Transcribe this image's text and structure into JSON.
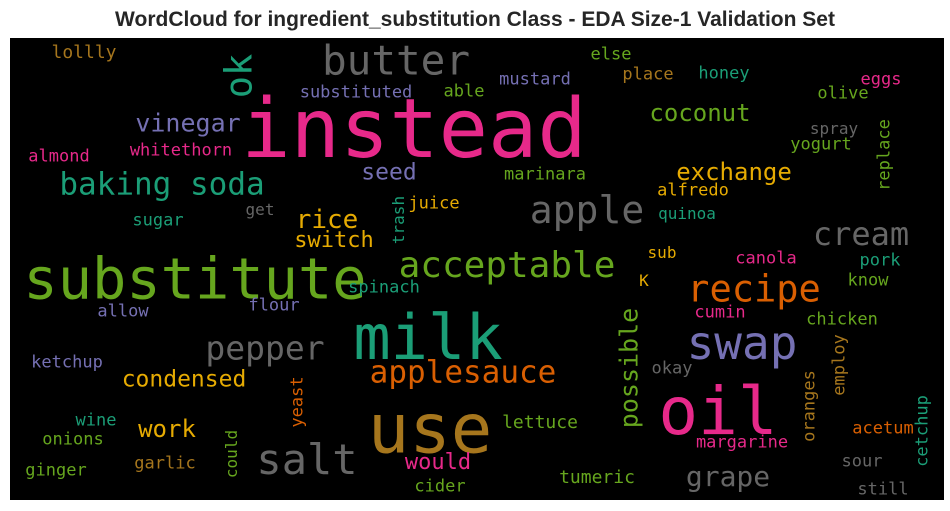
{
  "chart_data": {
    "type": "wordcloud",
    "title": "WordCloud for ingredient_substitution Class - EDA Size-1 Validation Set",
    "background": "#000000",
    "words": [
      {
        "text": "instead",
        "color": "#e7298a"
      },
      {
        "text": "substitute",
        "color": "#66a61e"
      },
      {
        "text": "use",
        "color": "#a6761d"
      },
      {
        "text": "milk",
        "color": "#1b9e77"
      },
      {
        "text": "oil",
        "color": "#e7298a"
      },
      {
        "text": "swap",
        "color": "#7570b3"
      },
      {
        "text": "butter",
        "color": "#666666"
      },
      {
        "text": "salt",
        "color": "#666666"
      },
      {
        "text": "apple",
        "color": "#666666"
      },
      {
        "text": "acceptable",
        "color": "#66a61e"
      },
      {
        "text": "baking soda",
        "color": "#1b9e77"
      },
      {
        "text": "recipe",
        "color": "#d95f02"
      },
      {
        "text": "ok",
        "color": "#1b9e77"
      },
      {
        "text": "cream",
        "color": "#666666"
      },
      {
        "text": "applesauce",
        "color": "#d95f02"
      },
      {
        "text": "pepper",
        "color": "#666666"
      },
      {
        "text": "vinegar",
        "color": "#7570b3"
      },
      {
        "text": "coconut",
        "color": "#66a61e"
      },
      {
        "text": "exchange",
        "color": "#e6ab02"
      },
      {
        "text": "possible",
        "color": "#66a61e"
      },
      {
        "text": "grape",
        "color": "#666666"
      },
      {
        "text": "condensed",
        "color": "#e6ab02"
      },
      {
        "text": "rice",
        "color": "#e6ab02"
      },
      {
        "text": "switch",
        "color": "#e6ab02"
      },
      {
        "text": "seed",
        "color": "#7570b3"
      },
      {
        "text": "work",
        "color": "#e6ab02"
      },
      {
        "text": "would",
        "color": "#e7298a"
      },
      {
        "text": "lollly",
        "color": "#a6761d"
      },
      {
        "text": "else",
        "color": "#66a61e"
      },
      {
        "text": "eggs",
        "color": "#e7298a"
      },
      {
        "text": "mustard",
        "color": "#7570b3"
      },
      {
        "text": "place",
        "color": "#a6761d"
      },
      {
        "text": "honey",
        "color": "#1b9e77"
      },
      {
        "text": "substituted",
        "color": "#7570b3"
      },
      {
        "text": "able",
        "color": "#66a61e"
      },
      {
        "text": "olive",
        "color": "#66a61e"
      },
      {
        "text": "spray",
        "color": "#666666"
      },
      {
        "text": "almond",
        "color": "#e7298a"
      },
      {
        "text": "whitethorn",
        "color": "#e7298a"
      },
      {
        "text": "yogurt",
        "color": "#66a61e"
      },
      {
        "text": "replace",
        "color": "#66a61e"
      },
      {
        "text": "marinara",
        "color": "#66a61e"
      },
      {
        "text": "alfredo",
        "color": "#e6ab02"
      },
      {
        "text": "get",
        "color": "#666666"
      },
      {
        "text": "juice",
        "color": "#e6ab02"
      },
      {
        "text": "sugar",
        "color": "#1b9e77"
      },
      {
        "text": "quinoa",
        "color": "#1b9e77"
      },
      {
        "text": "trash",
        "color": "#1b9e77"
      },
      {
        "text": "sub",
        "color": "#e6ab02"
      },
      {
        "text": "canola",
        "color": "#e7298a"
      },
      {
        "text": "pork",
        "color": "#1b9e77"
      },
      {
        "text": "K",
        "color": "#e6ab02"
      },
      {
        "text": "know",
        "color": "#66a61e"
      },
      {
        "text": "spinach",
        "color": "#1b9e77"
      },
      {
        "text": "allow",
        "color": "#7570b3"
      },
      {
        "text": "flour",
        "color": "#7570b3"
      },
      {
        "text": "cumin",
        "color": "#e7298a"
      },
      {
        "text": "chicken",
        "color": "#66a61e"
      },
      {
        "text": "ketchup",
        "color": "#7570b3"
      },
      {
        "text": "yeast",
        "color": "#d95f02"
      },
      {
        "text": "okay",
        "color": "#666666"
      },
      {
        "text": "employ",
        "color": "#a6761d"
      },
      {
        "text": "oranges",
        "color": "#a6761d"
      },
      {
        "text": "cetchup",
        "color": "#1b9e77"
      },
      {
        "text": "wine",
        "color": "#1b9e77"
      },
      {
        "text": "lettuce",
        "color": "#66a61e"
      },
      {
        "text": "acetum",
        "color": "#d95f02"
      },
      {
        "text": "onions",
        "color": "#66a61e"
      },
      {
        "text": "could",
        "color": "#66a61e"
      },
      {
        "text": "margarine",
        "color": "#e7298a"
      },
      {
        "text": "ginger",
        "color": "#66a61e"
      },
      {
        "text": "garlic",
        "color": "#a6761d"
      },
      {
        "text": "sour",
        "color": "#666666"
      },
      {
        "text": "tumeric",
        "color": "#66a61e"
      },
      {
        "text": "cider",
        "color": "#66a61e"
      },
      {
        "text": "still",
        "color": "#666666"
      }
    ]
  }
}
